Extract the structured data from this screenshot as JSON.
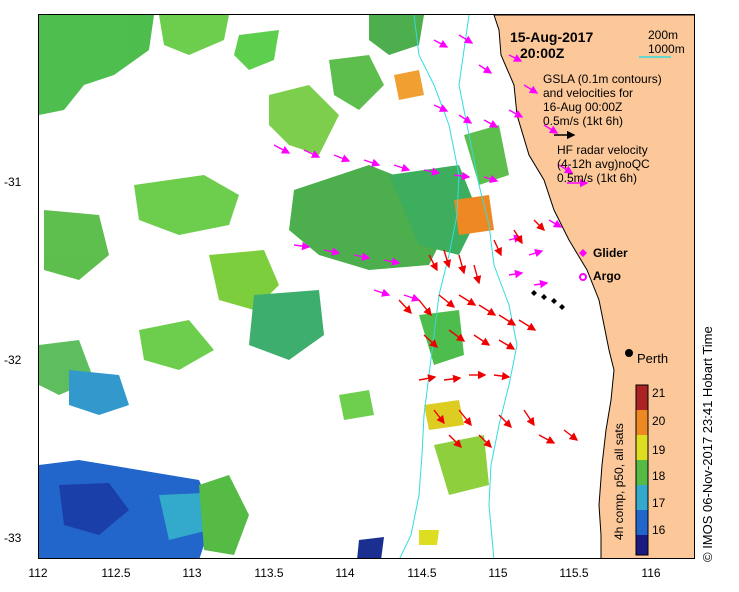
{
  "map": {
    "date": "15-Aug-2017",
    "time": "20:00Z",
    "bathy_legend": [
      "200m",
      "1000m"
    ],
    "gsla_note": [
      "GSLA (0.1m contours)",
      "and velocities for",
      "16-Aug 00:00Z",
      "0.5m/s (1kt 6h)"
    ],
    "hf_note": [
      "HF radar velocity",
      "(4-12h avg)noQC",
      "0.5m/s (1kt 6h)"
    ],
    "glider_label": "Glider",
    "argo_label": "Argo",
    "city_label": "Perth",
    "credit": "© IMOS 06-Nov-2017 23:41 Hobart Time",
    "colorbar_title": "4h comp, p50, all sats",
    "colorbar_ticks": [
      "21",
      "20",
      "19",
      "18",
      "17",
      "16"
    ],
    "x_ticks": [
      "112",
      "112.5",
      "113",
      "113.5",
      "114",
      "114.5",
      "115",
      "115.5",
      "116"
    ],
    "y_ticks": [
      "-31",
      "-32",
      "-33"
    ],
    "colors": {
      "land": "#fcc89a",
      "gsla_arrow": "#ff00ff",
      "hf_arrow": "#ee0000",
      "bathy_line": "#33dddd",
      "sst_green": "#44bb44",
      "sst_blue": "#2266cc"
    }
  }
}
